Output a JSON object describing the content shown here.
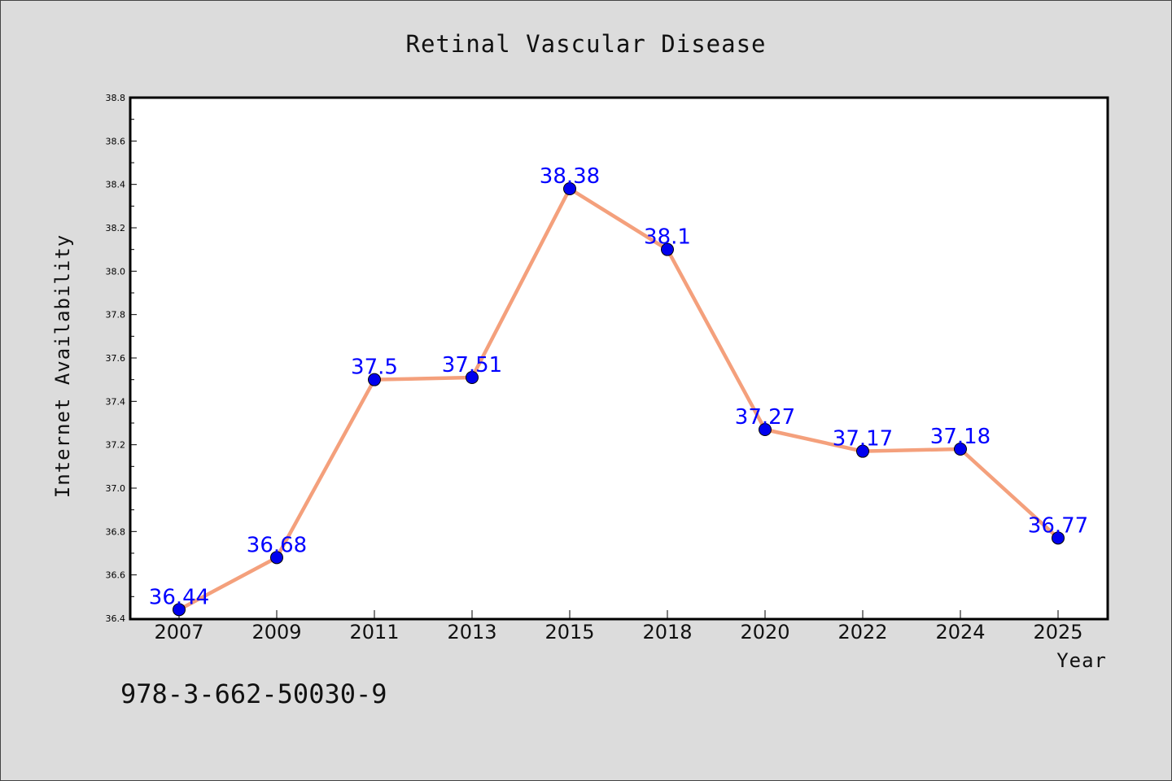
{
  "chart_data": {
    "type": "line",
    "title": "Retinal Vascular Disease",
    "xlabel": "Year",
    "ylabel": "Internet Availability",
    "categories": [
      "2007",
      "2009",
      "2011",
      "2013",
      "2015",
      "2018",
      "2020",
      "2022",
      "2024",
      "2025"
    ],
    "series": [
      {
        "values": [
          36.44,
          36.68,
          37.5,
          37.51,
          38.38,
          38.1,
          37.27,
          37.17,
          37.18,
          36.77
        ],
        "data_labels": [
          "36.44",
          "36.68",
          "37.5",
          "37.51",
          "38.38",
          "38.1",
          "37.27",
          "37.17",
          "37.18",
          "36.77"
        ]
      }
    ],
    "ylim": [
      36.4,
      38.8
    ],
    "y_ticks": [
      "36.4",
      "36.6",
      "36.8",
      "37.0",
      "37.2",
      "37.4",
      "37.6",
      "37.8",
      "38.0",
      "38.2",
      "38.4",
      "38.6",
      "38.8"
    ],
    "grid": false,
    "line_color": "#f4a07c",
    "marker_color": "#0000ee",
    "label_color": "#0000ff"
  },
  "footer": {
    "text": "978-3-662-50030-9"
  }
}
